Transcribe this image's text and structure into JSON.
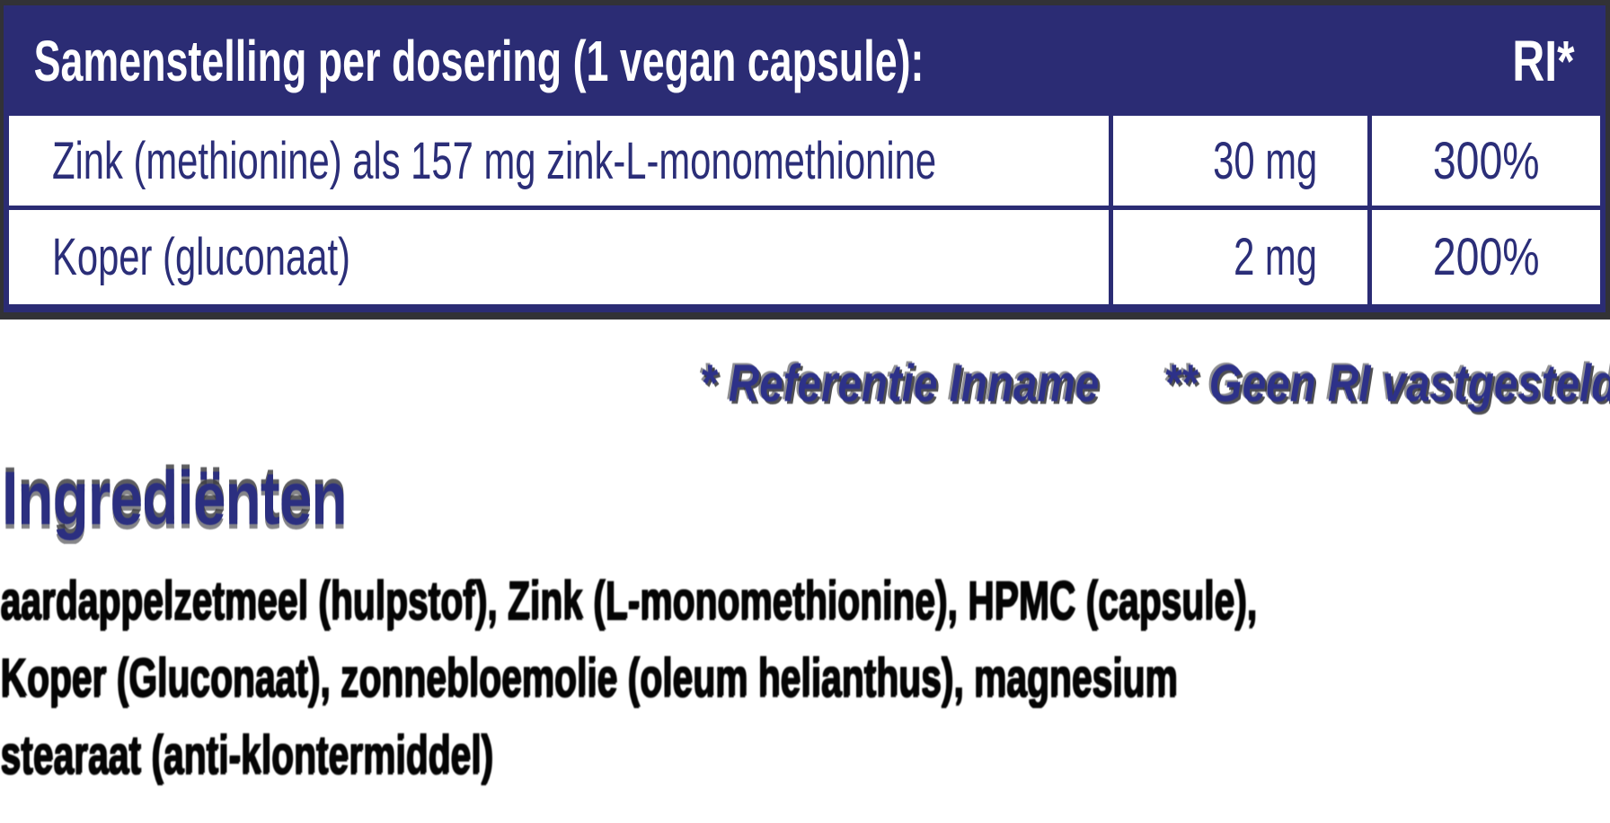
{
  "colors": {
    "navy_header_bg": "#2b2c74",
    "navy_text": "#2b2e78",
    "footnote_blue": "#2d3189",
    "ingredients_heading_blue": "#2b2f80",
    "body_text_black": "#050505",
    "table_bg": "#ffffff"
  },
  "table": {
    "header": {
      "title": "Samenstelling per dosering (1 vegan capsule):",
      "ri_label": "RI*"
    },
    "rows": [
      {
        "name": "Zink (methionine) als 157 mg zink-L-monomethionine",
        "amount": "30 mg",
        "ri": "300%"
      },
      {
        "name": "Koper (gluconaat)",
        "amount": "2 mg",
        "ri": "200%"
      }
    ]
  },
  "footnotes": {
    "reference_intake": "* Referentie Inname",
    "no_ri": "** Geen RI vastgesteld"
  },
  "ingredients": {
    "heading": "Ingrediënten",
    "lines": [
      "aardappelzetmeel (hulpstof), Zink (L-monomethionine), HPMC (capsule),",
      "Koper (Gluconaat), zonnebloemolie (oleum helianthus), magnesium",
      "stearaat (anti-klontermiddel)"
    ]
  }
}
